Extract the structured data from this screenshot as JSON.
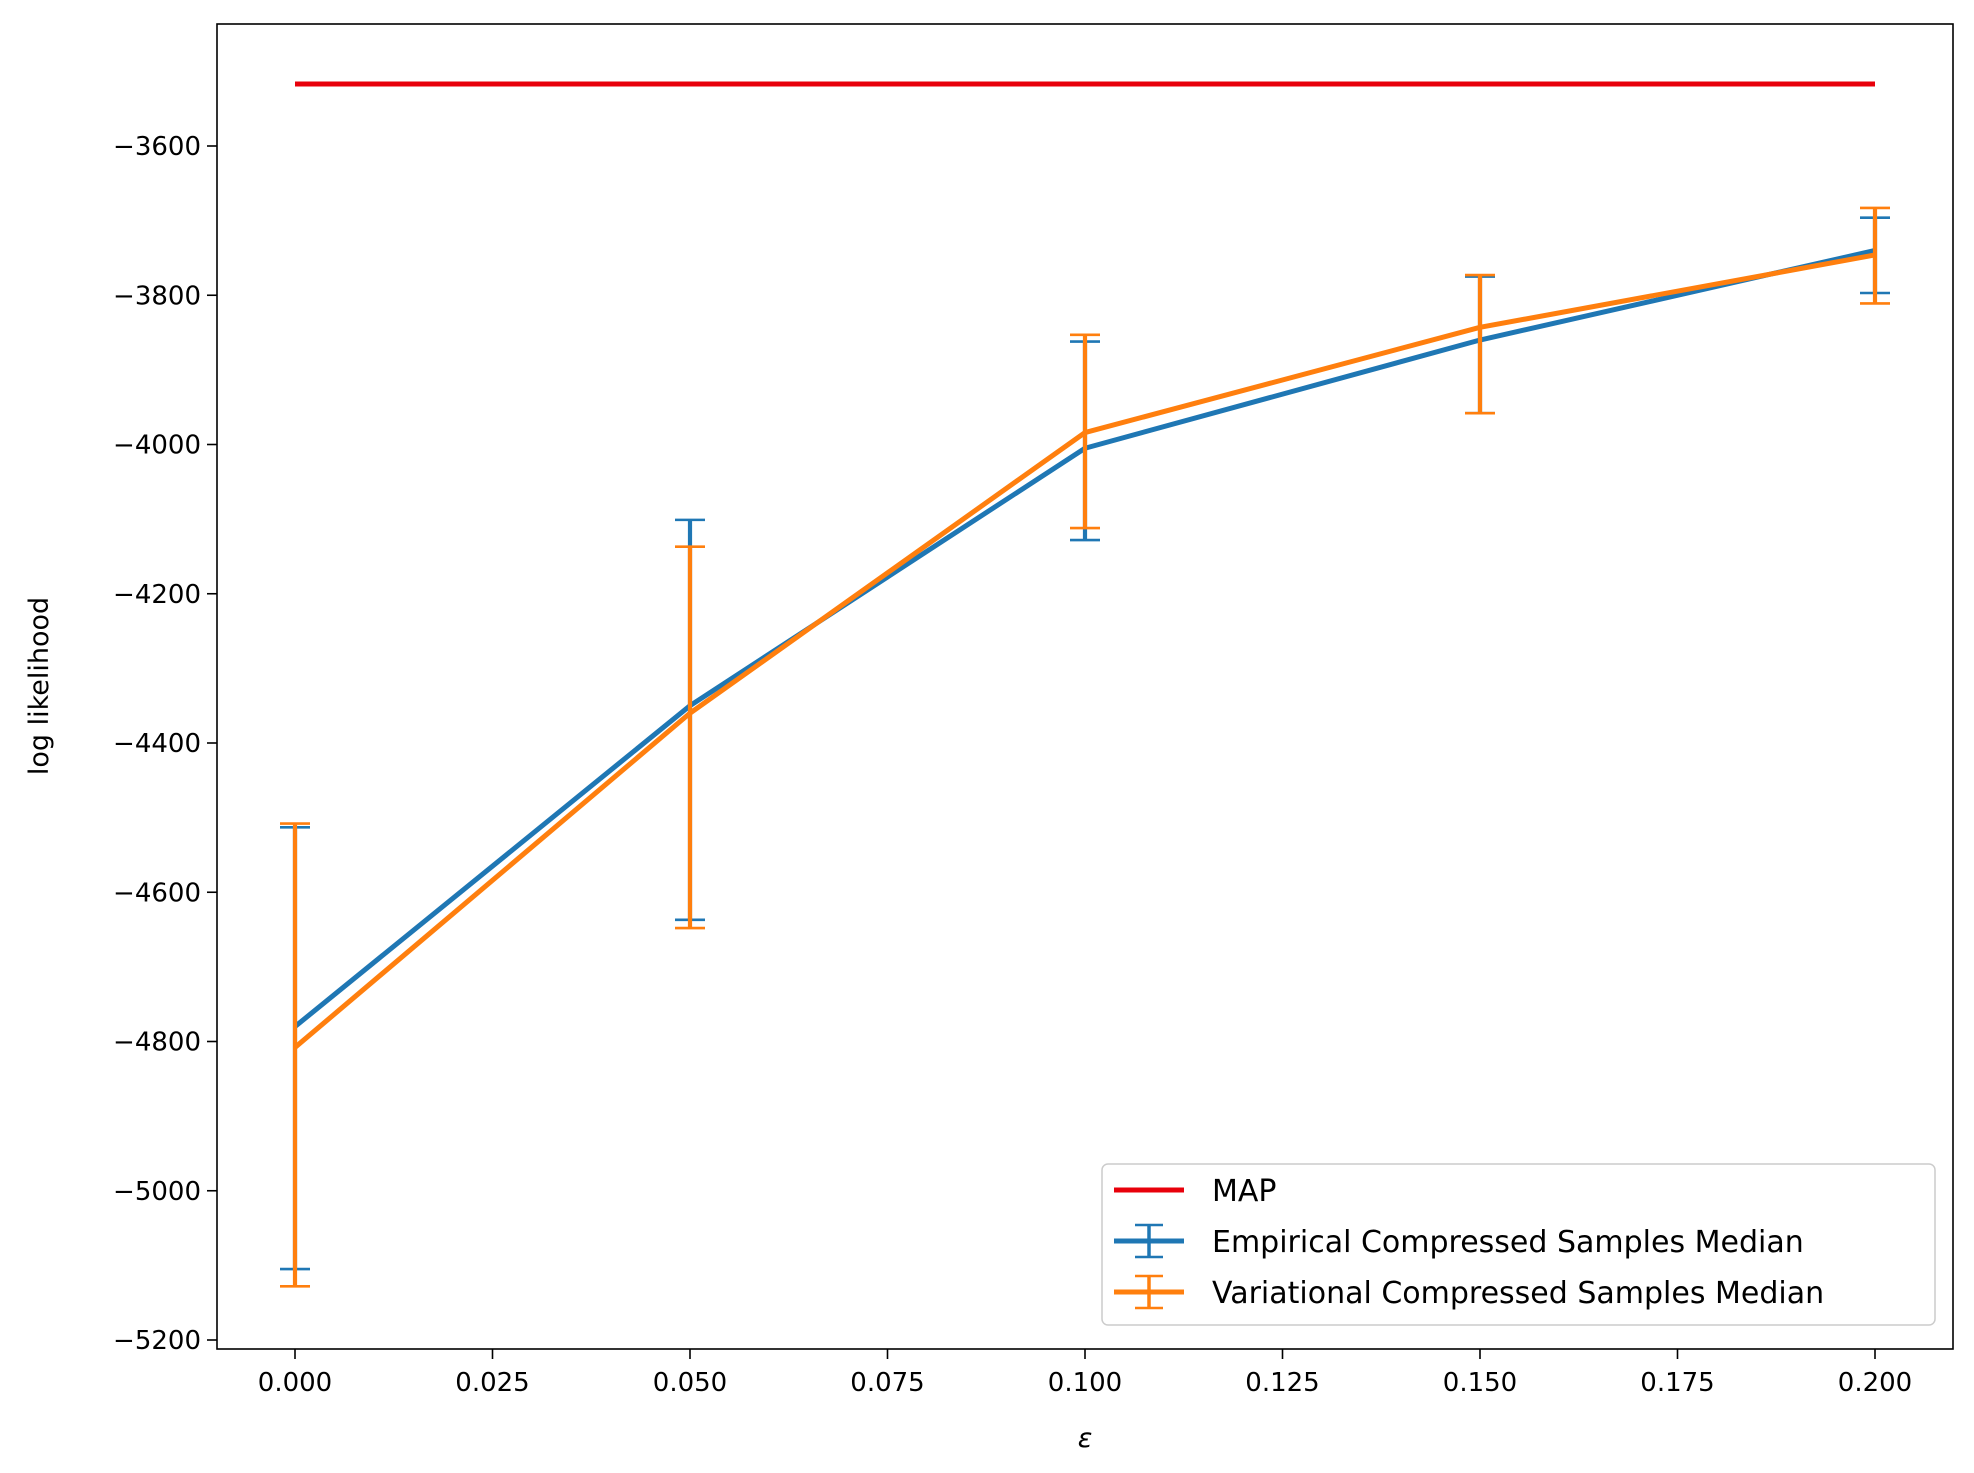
{
  "chart_data": {
    "type": "line",
    "xlabel": "ε",
    "ylabel": "log likelihood",
    "xlim": [
      -0.01,
      0.21
    ],
    "ylim": [
      -5210,
      -3475
    ],
    "xticks": [
      0.0,
      0.025,
      0.05,
      0.075,
      0.1,
      0.125,
      0.15,
      0.175,
      0.2
    ],
    "xtick_labels": [
      "0.000",
      "0.025",
      "0.050",
      "0.075",
      "0.100",
      "0.125",
      "0.150",
      "0.175",
      "0.200"
    ],
    "yticks": [
      -3600,
      -3800,
      -4000,
      -4200,
      -4400,
      -4600,
      -4800,
      -5000,
      -5200
    ],
    "ytick_labels": [
      "−3600",
      "−3800",
      "−4000",
      "−4200",
      "−4400",
      "−4600",
      "−4800",
      "−5000",
      "−5200"
    ],
    "grid": false,
    "legend_position": "lower-right",
    "series": [
      {
        "name": "MAP",
        "color": "#e8000b",
        "kind": "line",
        "x": [
          0.0,
          0.2
        ],
        "y": [
          -3517,
          -3517
        ]
      },
      {
        "name": "Empirical Compressed Samples Median",
        "color": "#1f77b4",
        "kind": "errorbar",
        "x": [
          0.0,
          0.05,
          0.1,
          0.15,
          0.2
        ],
        "y": [
          -4780,
          -4350,
          -4005,
          -3860,
          -3740
        ],
        "yerr_low": [
          -5105,
          -4637,
          -4128,
          -3958,
          -3797
        ],
        "yerr_high": [
          -4513,
          -4101,
          -3862,
          -3775,
          -3696
        ]
      },
      {
        "name": "Variational Compressed Samples Median",
        "color": "#ff7f0e",
        "kind": "errorbar",
        "x": [
          0.0,
          0.05,
          0.1,
          0.15,
          0.2
        ],
        "y": [
          -4808,
          -4360,
          -3984,
          -3843,
          -3746
        ],
        "yerr_low": [
          -5128,
          -4648,
          -4112,
          -3958,
          -3811
        ],
        "yerr_high": [
          -4508,
          -4137,
          -3853,
          -3773,
          -3683
        ]
      }
    ]
  }
}
